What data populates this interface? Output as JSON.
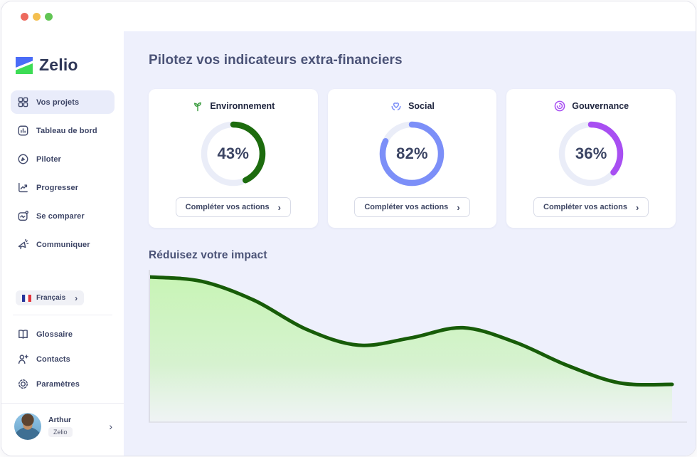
{
  "window": {
    "traffic_lights": [
      "#ed6a5e",
      "#f4bf4f",
      "#61c554"
    ]
  },
  "sidebar": {
    "logo_text": "Zelio",
    "nav": [
      {
        "label": "Vos projets",
        "icon": "grid-icon",
        "active": true
      },
      {
        "label": "Tableau de bord",
        "icon": "dashboard-icon",
        "active": false
      },
      {
        "label": "Piloter",
        "icon": "compass-pen-icon",
        "active": false
      },
      {
        "label": "Progresser",
        "icon": "trend-up-icon",
        "active": false
      },
      {
        "label": "Se comparer",
        "icon": "compare-wave-icon",
        "active": false
      },
      {
        "label": "Communiquer",
        "icon": "megaphone-icon",
        "active": false
      }
    ],
    "language": {
      "label": "Français",
      "flag": "french-flag-icon"
    },
    "secondary": [
      {
        "label": "Glossaire",
        "icon": "book-icon"
      },
      {
        "label": "Contacts",
        "icon": "add-contact-icon"
      },
      {
        "label": "Paramètres",
        "icon": "gear-icon"
      }
    ],
    "profile": {
      "name": "Arthur",
      "badge": "Zelio"
    }
  },
  "main": {
    "title": "Pilotez vos indicateurs extra-financiers",
    "cards": [
      {
        "label": "Environnement",
        "icon": "sprout-icon",
        "icon_color": "#43a047",
        "ring_color": "#1d6c0e",
        "value": 43,
        "value_label": "43%",
        "button_label": "Compléter vos actions"
      },
      {
        "label": "Social",
        "icon": "heart-hands-icon",
        "icon_color": "#7c8ff8",
        "ring_color": "#7c8ff8",
        "value": 82,
        "value_label": "82%",
        "button_label": "Compléter vos actions"
      },
      {
        "label": "Gouvernance",
        "icon": "target-icon",
        "icon_color": "#a84ff2",
        "ring_color": "#a84ff2",
        "value": 36,
        "value_label": "36%",
        "button_label": "Compléter vos actions"
      }
    ],
    "section_title": "Réduisez votre impact"
  },
  "chart_data": {
    "type": "area",
    "title": "Réduisez votre impact",
    "x": [
      0,
      1,
      2,
      3,
      4,
      5,
      6,
      7,
      8,
      9,
      10
    ],
    "values": [
      99,
      96,
      83,
      63,
      52,
      57,
      64,
      54,
      38,
      26,
      25
    ],
    "ylim": [
      0,
      100
    ],
    "xlabel": "",
    "ylabel": "",
    "grid": false,
    "legend": false,
    "line_color": "#175c08",
    "fill_color_top": "#c6f4b2",
    "fill_color_bottom": "#f1f6ee",
    "axis_color": "#dcdde6"
  }
}
